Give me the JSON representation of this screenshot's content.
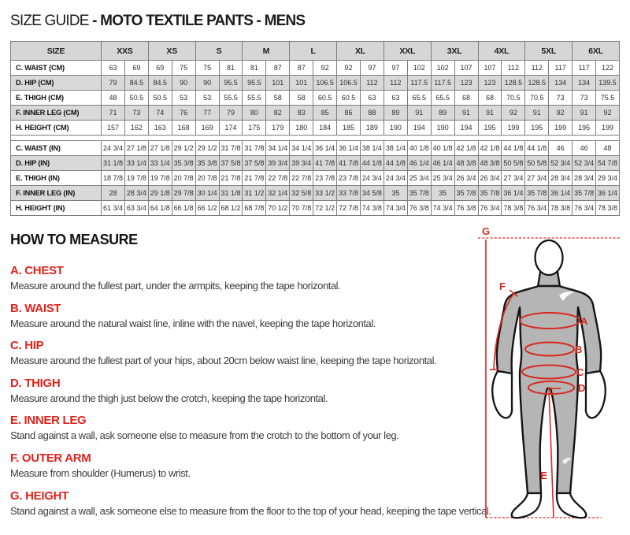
{
  "title": {
    "prefix": "SIZE GUIDE ",
    "product": "- MOTO TEXTILE PANTS - MENS"
  },
  "table": {
    "size_header_label": "SIZE",
    "sizes": [
      "XXS",
      "XS",
      "S",
      "M",
      "L",
      "XL",
      "XXL",
      "3XL",
      "4XL",
      "5XL",
      "6XL"
    ],
    "row_groups": [
      [
        {
          "label": "C. WAIST (CM)",
          "values": [
            "63",
            "69",
            "69",
            "75",
            "75",
            "81",
            "81",
            "87",
            "87",
            "92",
            "92",
            "97",
            "97",
            "102",
            "102",
            "107",
            "107",
            "112",
            "112",
            "117",
            "117",
            "122"
          ]
        },
        {
          "label": "D. HIP (CM)",
          "values": [
            "79",
            "84.5",
            "84.5",
            "90",
            "90",
            "95.5",
            "95.5",
            "101",
            "101",
            "106.5",
            "106.5",
            "112",
            "112",
            "117.5",
            "117.5",
            "123",
            "123",
            "128.5",
            "128.5",
            "134",
            "134",
            "139.5"
          ]
        },
        {
          "label": "E. THIGH (CM)",
          "values": [
            "48",
            "50.5",
            "50.5",
            "53",
            "53",
            "55.5",
            "55.5",
            "58",
            "58",
            "60.5",
            "60.5",
            "63",
            "63",
            "65.5",
            "65.5",
            "68",
            "68",
            "70.5",
            "70.5",
            "73",
            "73",
            "75.5"
          ]
        },
        {
          "label": "F. INNER LEG (CM)",
          "values": [
            "71",
            "73",
            "74",
            "76",
            "77",
            "79",
            "80",
            "82",
            "83",
            "85",
            "86",
            "88",
            "89",
            "91",
            "89",
            "91",
            "91",
            "92",
            "91",
            "92",
            "91",
            "92"
          ]
        },
        {
          "label": "H. HEIGHT (CM)",
          "values": [
            "157",
            "162",
            "163",
            "168",
            "169",
            "174",
            "175",
            "179",
            "180",
            "184",
            "185",
            "189",
            "190",
            "194",
            "190",
            "194",
            "195",
            "199",
            "195",
            "199",
            "195",
            "199"
          ]
        }
      ],
      [
        {
          "label": "C. WAIST (IN)",
          "values": [
            "24 3/4",
            "27 1/8",
            "27 1/8",
            "29 1/2",
            "29 1/2",
            "31 7/8",
            "31 7/8",
            "34 1/4",
            "34 1/4",
            "36 1/4",
            "36 1/4",
            "38 1/4",
            "38 1/4",
            "40 1/8",
            "40 1/8",
            "42 1/8",
            "42 1/8",
            "44 1/8",
            "44 1/8",
            "46",
            "46",
            "48"
          ]
        },
        {
          "label": "D. HIP (IN)",
          "values": [
            "31 1/8",
            "33 1/4",
            "33 1/4",
            "35 3/8",
            "35 3/8",
            "37 5/8",
            "37 5/8",
            "39 3/4",
            "39 3/4",
            "41 7/8",
            "41 7/8",
            "44 1/8",
            "44 1/8",
            "46 1/4",
            "46 1/4",
            "48 3/8",
            "48 3/8",
            "50 5/8",
            "50 5/8",
            "52 3/4",
            "52 3/4",
            "54 7/8"
          ]
        },
        {
          "label": "E. THIGH (IN)",
          "values": [
            "18 7/8",
            "19 7/8",
            "19 7/8",
            "20 7/8",
            "20 7/8",
            "21 7/8",
            "21 7/8",
            "22 7/8",
            "22 7/8",
            "23 7/8",
            "23 7/8",
            "24 3/4",
            "24 3/4",
            "25 3/4",
            "25 3/4",
            "26 3/4",
            "26 3/4",
            "27 3/4",
            "27 3/4",
            "28 3/4",
            "28 3/4",
            "29 3/4"
          ]
        },
        {
          "label": "F. INNER LEG (IN)",
          "values": [
            "28",
            "28 3/4",
            "29 1/8",
            "29 7/8",
            "30 1/4",
            "31 1/8",
            "31 1/2",
            "32 1/4",
            "32 5/8",
            "33 1/2",
            "33 7/8",
            "34 5/8",
            "35",
            "35 7/8",
            "35",
            "35 7/8",
            "35 7/8",
            "36 1/4",
            "35 7/8",
            "36 1/4",
            "35 7/8",
            "36 1/4"
          ]
        },
        {
          "label": "H. HEIGHT (IN)",
          "values": [
            "61 3/4",
            "63 3/4",
            "64 1/8",
            "66 1/8",
            "66 1/2",
            "68 1/2",
            "68 7/8",
            "70 1/2",
            "70 7/8",
            "72 1/2",
            "72 7/8",
            "74 3/8",
            "74 3/4",
            "76 3/8",
            "74 3/4",
            "76 3/8",
            "76 3/4",
            "78 3/8",
            "76 3/4",
            "78 3/8",
            "76 3/4",
            "78 3/8"
          ]
        }
      ]
    ]
  },
  "how_to_measure": {
    "heading": "HOW TO MEASURE",
    "items": [
      {
        "label": "A. CHEST",
        "text": "Measure around the fullest part, under the armpits, keeping the tape horizontal."
      },
      {
        "label": "B. WAIST",
        "text": "Measure around the natural waist line, inline with the navel, keeping the tape horizontal."
      },
      {
        "label": "C. HIP",
        "text": "Measure around the fullest part of your hips, about 20cm below waist line, keeping the tape horizontal."
      },
      {
        "label": "D. THIGH",
        "text": "Measure around the thigh just below the crotch, keeping the tape horizontal."
      },
      {
        "label": "E. INNER LEG",
        "text": "Stand against a wall, ask someone else to measure from the crotch to the bottom of your leg."
      },
      {
        "label": "F. OUTER ARM",
        "text": "Measure from shoulder (Humerus) to wrist."
      },
      {
        "label": "G. HEIGHT",
        "text": "Stand against a wall, ask someone else to measure from the floor to the top of your head, keeping the tape vertical."
      }
    ]
  },
  "diagram": {
    "labels": {
      "a": "A",
      "b": "B",
      "c": "C",
      "d": "D",
      "e": "E",
      "f": "F",
      "g": "G"
    }
  },
  "colors": {
    "accent_red": "#d9281f",
    "heading_red": "#e0231c",
    "table_stripe": "#d9d9d9",
    "figure_gray": "#b5b5b5"
  }
}
